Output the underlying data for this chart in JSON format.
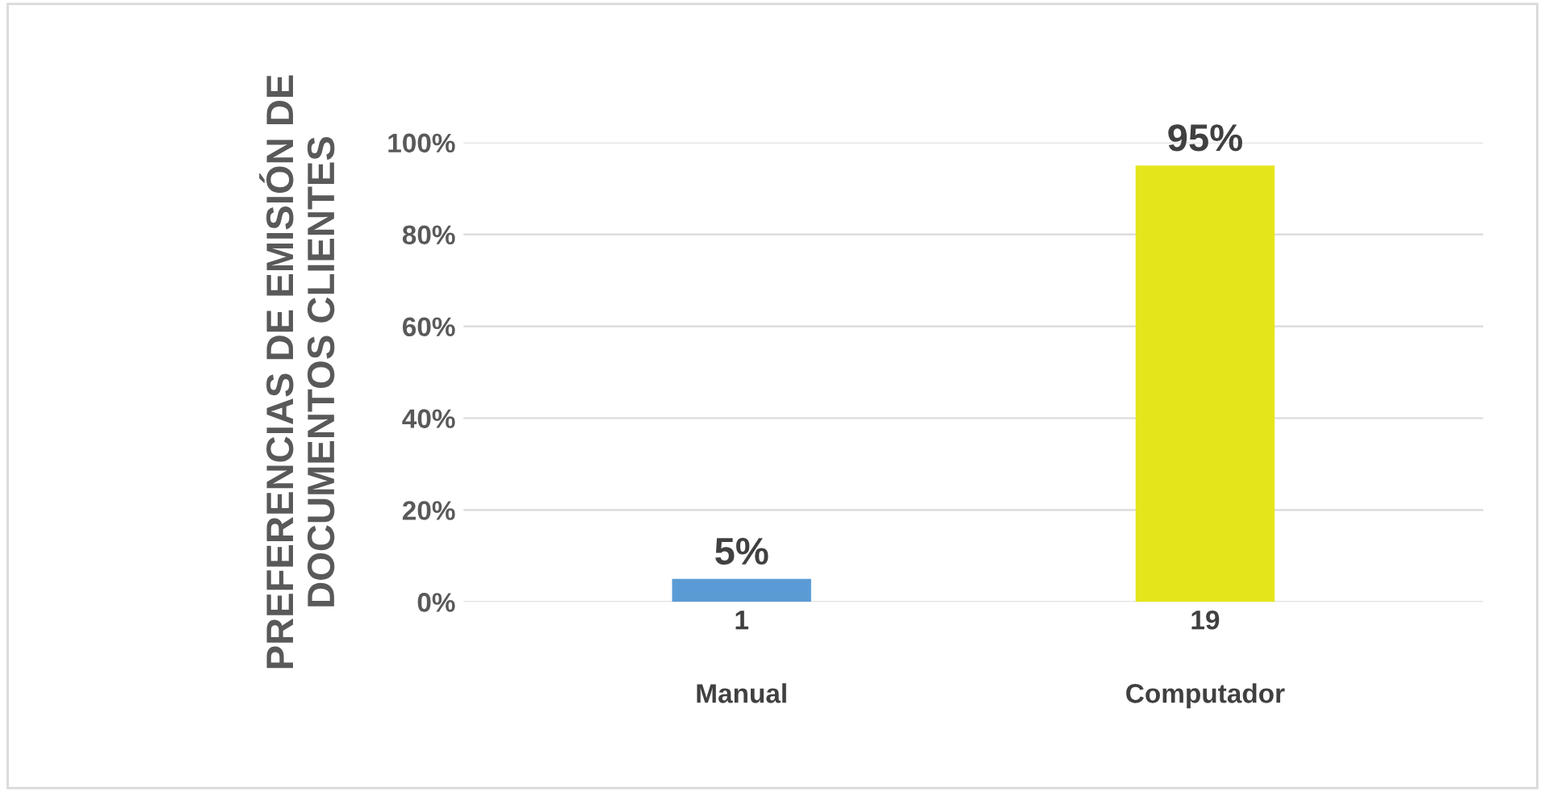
{
  "chart_data": {
    "type": "bar",
    "ylabel": "PREFERENCIAS DE EMISIÓN DE DOCUMENTOS CLIENTES",
    "categories": [
      "1\n\nManual",
      "19\n\nComputador"
    ],
    "values": [
      5,
      95
    ],
    "colors": [
      "#5b9bd5",
      "#e5e51c"
    ],
    "value_labels": [
      "5%",
      "95%"
    ],
    "ylim": [
      0,
      100
    ],
    "yticks": [
      {
        "value": 0,
        "label": "0%"
      },
      {
        "value": 20,
        "label": "20%"
      },
      {
        "value": 40,
        "label": "40%"
      },
      {
        "value": 60,
        "label": "60%"
      },
      {
        "value": 80,
        "label": "80%"
      },
      {
        "value": 100,
        "label": "100%"
      }
    ],
    "grid": "y",
    "legend": false
  }
}
